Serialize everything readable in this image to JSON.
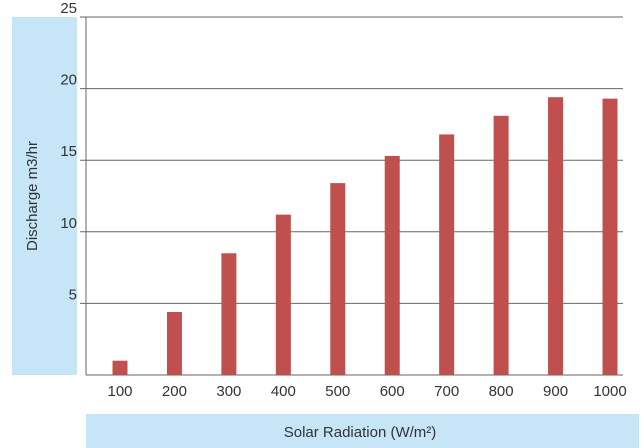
{
  "chart_data": {
    "type": "bar",
    "title": "",
    "xlabel": "Solar Radiation (W/m²)",
    "ylabel": "Discharge m3/hr",
    "categories": [
      "100",
      "200",
      "300",
      "400",
      "500",
      "600",
      "700",
      "800",
      "900",
      "1000"
    ],
    "values": [
      1.0,
      4.4,
      8.5,
      11.2,
      13.4,
      15.3,
      16.8,
      18.1,
      19.4,
      19.3
    ],
    "ylim": [
      0,
      25
    ],
    "yticks": [
      "5",
      "10",
      "15",
      "20",
      "25"
    ],
    "grid": true,
    "legend": "none",
    "colors": {
      "bar": "#c0504d",
      "label_box": "#c6e6f8",
      "grid": "#666666",
      "text": "#333333"
    }
  }
}
